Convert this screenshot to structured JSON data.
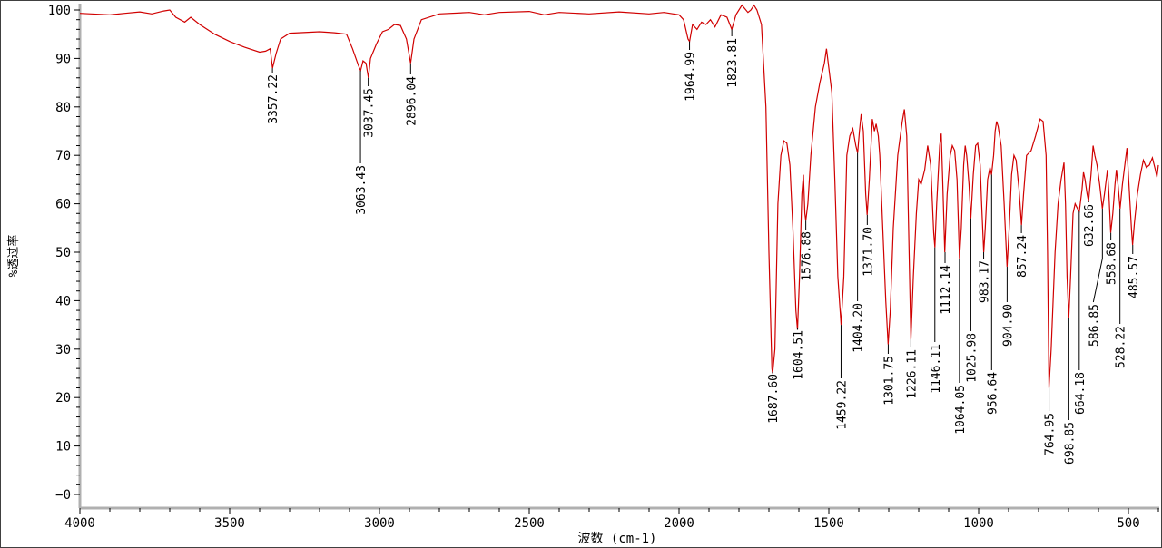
{
  "chart_data": {
    "type": "line",
    "title": "",
    "xlabel": "波数 (cm-1)",
    "ylabel": "%透过率",
    "xlim": [
      4000,
      400
    ],
    "ylim": [
      -3,
      101.5
    ],
    "x_reversed": true,
    "grid": false,
    "line_color": "#d00000",
    "x_ticks": [
      4000,
      3500,
      3000,
      2500,
      2000,
      1500,
      1000,
      500
    ],
    "x_tick_labels": [
      "4000",
      "3500",
      "3000",
      "2500",
      "2000",
      "1500",
      "1000",
      "500"
    ],
    "y_ticks": [
      100,
      90,
      80,
      70,
      60,
      50,
      40,
      30,
      20,
      10,
      0
    ],
    "y_tick_labels": [
      "100",
      "90",
      "80",
      "70",
      "60",
      "50",
      "40",
      "30",
      "20",
      "10",
      "−0"
    ],
    "series": [
      {
        "x": [
          4000,
          3900,
          3850,
          3800,
          3760,
          3720,
          3700,
          3680,
          3650,
          3630,
          3600,
          3550,
          3500,
          3450,
          3400,
          3380,
          3365,
          3357,
          3345,
          3330,
          3300,
          3200,
          3150,
          3110,
          3090,
          3070,
          3063,
          3055,
          3045,
          3037,
          3030,
          3010,
          2990,
          2970,
          2950,
          2930,
          2910,
          2896,
          2885,
          2860,
          2800,
          2700,
          2650,
          2600,
          2500,
          2450,
          2400,
          2300,
          2200,
          2100,
          2050,
          2000,
          1985,
          1970,
          1965,
          1955,
          1940,
          1925,
          1910,
          1895,
          1880,
          1860,
          1840,
          1824,
          1810,
          1790,
          1770,
          1760,
          1750,
          1740,
          1725,
          1710,
          1700,
          1690,
          1687.6,
          1680,
          1670,
          1660,
          1650,
          1640,
          1630,
          1620,
          1610,
          1604.5,
          1598,
          1590,
          1585,
          1580,
          1577,
          1570,
          1560,
          1545,
          1530,
          1515,
          1508,
          1500,
          1490,
          1480,
          1470,
          1459,
          1450,
          1440,
          1430,
          1420,
          1410,
          1404,
          1398,
          1392,
          1385,
          1377,
          1372,
          1365,
          1355,
          1348,
          1342,
          1335,
          1330,
          1320,
          1310,
          1302,
          1295,
          1285,
          1270,
          1255,
          1248,
          1240,
          1232,
          1226,
          1218,
          1208,
          1200,
          1192,
          1180,
          1170,
          1160,
          1150,
          1146,
          1140,
          1130,
          1125,
          1120,
          1113,
          1105,
          1095,
          1088,
          1080,
          1072,
          1064,
          1058,
          1050,
          1045,
          1040,
          1032,
          1026,
          1018,
          1010,
          1003,
          995,
          990,
          983,
          978,
          970,
          962,
          957,
          950,
          945,
          940,
          935,
          925,
          915,
          905,
          898,
          890,
          882,
          875,
          865,
          857,
          850,
          840,
          825,
          810,
          795,
          785,
          775,
          770,
          765,
          758,
          745,
          735,
          725,
          715,
          710,
          705,
          699,
          693,
          685,
          678,
          670,
          664,
          655,
          650,
          645,
          638,
          633,
          625,
          618,
          612,
          605,
          596,
          587,
          580,
          570,
          565,
          559,
          552,
          545,
          540,
          535,
          528,
          520,
          510,
          505,
          500,
          490,
          486,
          480,
          470,
          460,
          450,
          440,
          430,
          420,
          410,
          405,
          400
        ],
        "y": [
          99.3,
          99,
          99.3,
          99.6,
          99.2,
          99.8,
          100,
          98.5,
          97.5,
          98.5,
          97,
          95,
          93.5,
          92.3,
          91.3,
          91.5,
          92,
          88,
          91,
          94,
          95.2,
          95.5,
          95.3,
          95,
          92,
          88.5,
          87.5,
          89.5,
          89,
          86,
          90,
          93,
          95.5,
          96,
          97,
          96.8,
          94,
          89,
          94,
          98,
          99.2,
          99.5,
          99,
          99.5,
          99.7,
          99,
          99.5,
          99.2,
          99.6,
          99.2,
          99.5,
          99,
          98,
          94,
          93.5,
          97,
          96,
          97.5,
          97,
          98,
          96.5,
          99,
          98.5,
          96,
          99,
          101,
          99.5,
          100,
          101,
          100,
          97,
          80,
          50,
          26,
          25,
          30,
          60,
          70,
          73,
          72.5,
          68,
          55,
          38,
          34,
          45,
          62,
          66,
          58,
          56.5,
          60,
          70,
          80,
          85,
          89,
          92,
          88,
          83,
          65,
          45,
          35,
          45,
          70,
          74,
          75.5,
          72,
          70.5,
          75,
          78.5,
          75,
          62,
          57.7,
          65,
          77.5,
          75,
          76.5,
          74,
          70,
          55,
          40,
          31,
          38,
          55,
          70,
          77,
          79.5,
          74,
          50,
          32,
          45,
          58,
          65,
          64,
          67,
          72,
          68,
          54,
          51,
          60,
          72,
          74.5,
          65,
          50,
          62,
          70,
          72,
          71,
          65,
          48.7,
          55,
          68,
          72,
          70,
          64,
          57,
          66,
          72,
          72.5,
          68,
          60,
          50,
          55,
          65,
          67.5,
          66,
          70,
          75,
          77,
          76,
          72,
          60,
          47,
          55,
          66,
          70,
          69,
          63,
          55.6,
          62,
          70,
          71,
          74,
          77.5,
          77,
          70,
          50,
          22,
          30,
          50,
          60,
          65,
          68.5,
          60,
          45,
          36.5,
          45,
          58,
          60,
          59,
          58.4,
          63,
          66.5,
          65,
          62,
          60.5,
          66,
          72,
          70,
          68,
          64,
          59,
          62,
          67,
          62,
          54,
          58,
          64,
          67,
          64,
          59,
          64,
          69,
          71.5,
          66,
          55,
          51.5,
          56,
          62,
          66,
          69,
          67.5,
          68,
          69.5,
          67,
          65.5,
          68
        ]
      }
    ],
    "annotations": [
      {
        "x": 3357.22,
        "y": 88,
        "label": "3357.22"
      },
      {
        "x": 3063.43,
        "y": 87.5,
        "label": "3063.43"
      },
      {
        "x": 3037.45,
        "y": 86,
        "label": "3037.45"
      },
      {
        "x": 2896.04,
        "y": 89,
        "label": "2896.04"
      },
      {
        "x": 1964.99,
        "y": 93.5,
        "label": "1964.99"
      },
      {
        "x": 1823.81,
        "y": 96,
        "label": "1823.81"
      },
      {
        "x": 1687.6,
        "y": 25,
        "label": "1687.60"
      },
      {
        "x": 1604.51,
        "y": 34,
        "label": "1604.51"
      },
      {
        "x": 1576.88,
        "y": 56.5,
        "label": "1576.88"
      },
      {
        "x": 1459.22,
        "y": 35,
        "label": "1459.22"
      },
      {
        "x": 1404.2,
        "y": 70.5,
        "label": "1404.20"
      },
      {
        "x": 1371.7,
        "y": 57.7,
        "label": "1371.70"
      },
      {
        "x": 1301.75,
        "y": 31,
        "label": "1301.75"
      },
      {
        "x": 1226.11,
        "y": 32,
        "label": "1226.11"
      },
      {
        "x": 1146.11,
        "y": 51,
        "label": "1146.11"
      },
      {
        "x": 1112.14,
        "y": 50,
        "label": "1112.14"
      },
      {
        "x": 1064.05,
        "y": 48.7,
        "label": "1064.05"
      },
      {
        "x": 1025.98,
        "y": 57,
        "label": "1025.98"
      },
      {
        "x": 983.17,
        "y": 50,
        "label": "983.17"
      },
      {
        "x": 956.64,
        "y": 66,
        "label": "956.64"
      },
      {
        "x": 904.9,
        "y": 47,
        "label": "904.90"
      },
      {
        "x": 857.24,
        "y": 55.6,
        "label": "857.24"
      },
      {
        "x": 764.95,
        "y": 22,
        "label": "764.95"
      },
      {
        "x": 698.85,
        "y": 36.5,
        "label": "698.85"
      },
      {
        "x": 664.18,
        "y": 58.4,
        "label": "664.18"
      },
      {
        "x": 632.66,
        "y": 60.5,
        "label": "632.66"
      },
      {
        "x": 586.85,
        "y": 59,
        "label": "586.85"
      },
      {
        "x": 558.68,
        "y": 54,
        "label": "558.68"
      },
      {
        "x": 528.22,
        "y": 59,
        "label": "528.22"
      },
      {
        "x": 485.57,
        "y": 51.5,
        "label": "485.57"
      }
    ]
  }
}
